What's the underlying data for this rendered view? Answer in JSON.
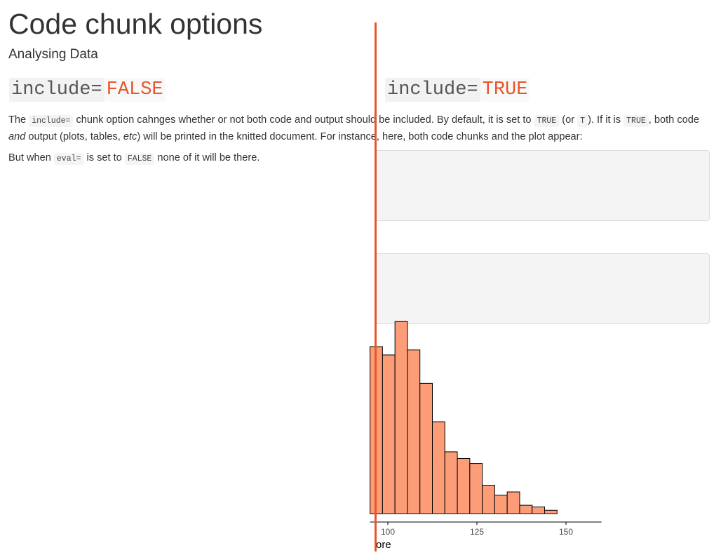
{
  "page": {
    "title": "Code chunk options",
    "subtitle": "Analysing Data"
  },
  "left_option": {
    "key": "include=",
    "value": "FALSE"
  },
  "right_option": {
    "key": "include=",
    "value": "TRUE"
  },
  "paragraph1": {
    "t1": "The ",
    "code1": "include=",
    "t2": " chunk option cahnges whether or not both code and output should be included. By default, it is set to ",
    "code2": "TRUE",
    "t3": " (or ",
    "code3": "T",
    "t4": "). If it is ",
    "code4": "TRUE",
    "t5": ", both code ",
    "em1": "and",
    "t6": " output (plots, tables, ",
    "em2": "etc",
    "t7": ") will be printed in the knitted document. For instance, here, both code chunks and the plot appear:"
  },
  "paragraph2": {
    "t1": "But when ",
    "code1": "eval=",
    "t2": " is set to ",
    "code2": "FALSE",
    "t3": " none of it will be there."
  },
  "colors": {
    "accent": "#e8562a",
    "bar_fill": "#fc9d77",
    "code_bg": "#f4f4f4"
  },
  "chart_data": {
    "type": "bar",
    "binwidth": 3.5,
    "bin_start": 95,
    "values": [
      1.0,
      0.95,
      1.15,
      0.98,
      0.78,
      0.55,
      0.37,
      0.33,
      0.3,
      0.17,
      0.11,
      0.13,
      0.05,
      0.04,
      0.02
    ],
    "x_ticks": [
      100,
      125,
      150
    ],
    "xlim": [
      95,
      158
    ],
    "xlabel_visible": "ore",
    "ylabel": "",
    "title": ""
  }
}
